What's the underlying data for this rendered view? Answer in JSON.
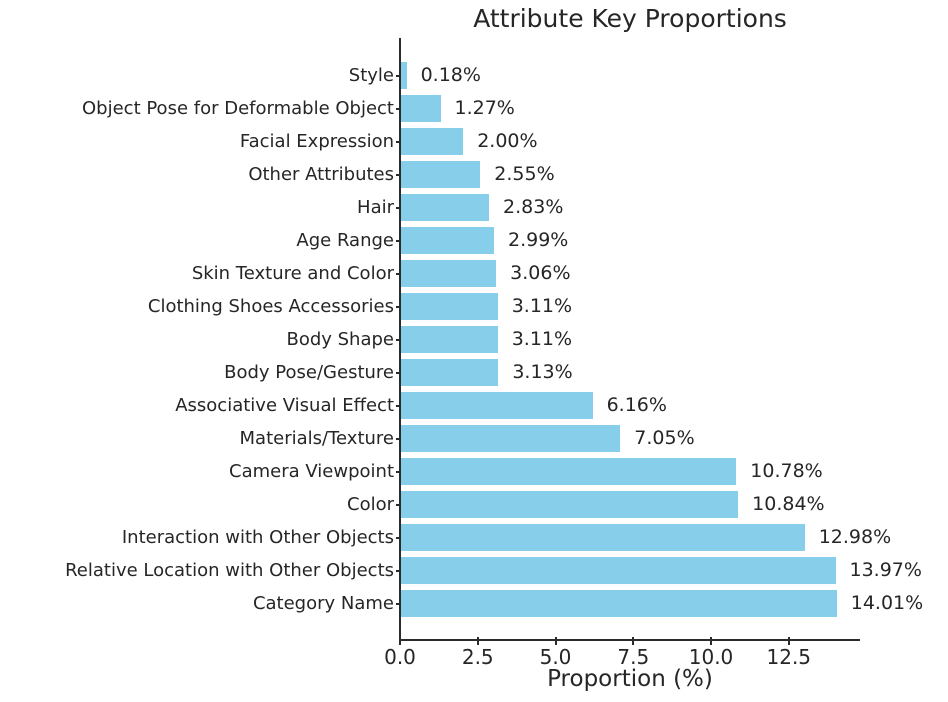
{
  "chart_data": {
    "type": "bar",
    "orientation": "horizontal",
    "title": "Attribute Key Proportions",
    "xlabel": "Proportion (%)",
    "categories": [
      "Style",
      "Object Pose for Deformable Object",
      "Facial Expression",
      "Other Attributes",
      "Hair",
      "Age Range",
      "Skin Texture and Color",
      "Clothing Shoes Accessories",
      "Body Shape",
      "Body Pose/Gesture",
      "Associative Visual Effect",
      "Materials/Texture",
      "Camera Viewpoint",
      "Color",
      "Interaction with Other Objects",
      "Relative Location with Other Objects",
      "Category Name"
    ],
    "values": [
      0.18,
      1.27,
      2.0,
      2.55,
      2.83,
      2.99,
      3.06,
      3.11,
      3.11,
      3.13,
      6.16,
      7.05,
      10.78,
      10.84,
      12.98,
      13.97,
      14.01
    ],
    "value_labels": [
      "0.18%",
      "1.27%",
      "2.00%",
      "2.55%",
      "2.83%",
      "2.99%",
      "3.06%",
      "3.11%",
      "3.11%",
      "3.13%",
      "6.16%",
      "7.05%",
      "10.78%",
      "10.84%",
      "12.98%",
      "13.97%",
      "14.01%"
    ],
    "x_ticks": [
      {
        "value": 0.0,
        "label": "0.0"
      },
      {
        "value": 2.5,
        "label": "2.5"
      },
      {
        "value": 5.0,
        "label": "5.0"
      },
      {
        "value": 7.5,
        "label": "7.5"
      },
      {
        "value": 10.0,
        "label": "10.0"
      },
      {
        "value": 12.5,
        "label": "12.5"
      }
    ],
    "xlim": [
      0,
      14.79
    ],
    "grid": false,
    "colors": {
      "bar": "#87CEEB",
      "text": "#262626",
      "axis": "#2b2b2b"
    }
  }
}
